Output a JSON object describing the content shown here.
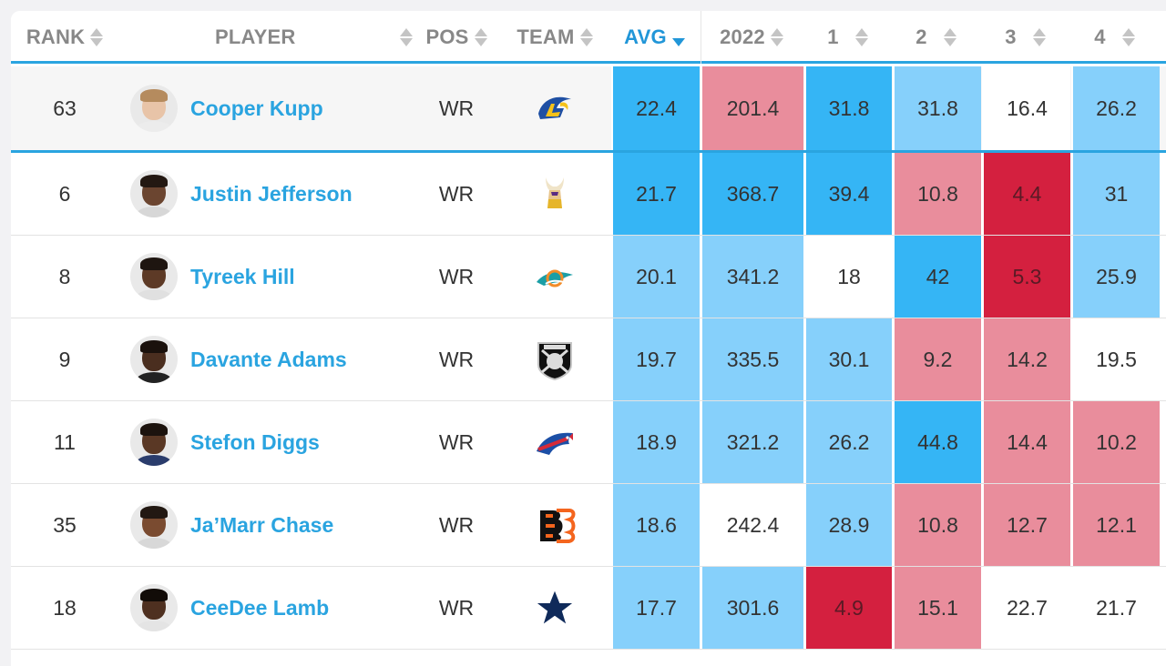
{
  "colors": {
    "dark_blue": "#35b5f5",
    "light_blue": "#86d0fb",
    "white": "#ffffff",
    "light_red": "#e98d9c",
    "dark_red": "#d4203f",
    "link_blue": "#2aa4e0",
    "header_gray": "#888888"
  },
  "table": {
    "headers": [
      {
        "label": "RANK",
        "sortable": true,
        "active": false
      },
      {
        "label": "PLAYER",
        "sortable": true,
        "active": false
      },
      {
        "label": "POS",
        "sortable": true,
        "active": false
      },
      {
        "label": "TEAM",
        "sortable": true,
        "active": false
      },
      {
        "label": "AVG",
        "sortable": true,
        "active": true,
        "sort_direction": "desc"
      },
      {
        "label": "2022",
        "sortable": true,
        "active": false
      },
      {
        "label": "1",
        "sortable": true,
        "active": false
      },
      {
        "label": "2",
        "sortable": true,
        "active": false
      },
      {
        "label": "3",
        "sortable": true,
        "active": false
      },
      {
        "label": "4",
        "sortable": true,
        "active": false
      }
    ],
    "rows": [
      {
        "rank": "63",
        "player": "Cooper Kupp",
        "pos": "WR",
        "team_logo": "rams-logo",
        "values": [
          "22.4",
          "201.4",
          "31.8",
          "31.8",
          "16.4",
          "26.2"
        ],
        "shades": [
          "dark_blue",
          "light_red",
          "dark_blue",
          "light_blue",
          "white",
          "light_blue"
        ],
        "pinned": true
      },
      {
        "rank": "6",
        "player": "Justin Jefferson",
        "pos": "WR",
        "team_logo": "vikings-logo",
        "values": [
          "21.7",
          "368.7",
          "39.4",
          "10.8",
          "4.4",
          "31"
        ],
        "shades": [
          "dark_blue",
          "dark_blue",
          "dark_blue",
          "light_red",
          "dark_red",
          "light_blue"
        ]
      },
      {
        "rank": "8",
        "player": "Tyreek Hill",
        "pos": "WR",
        "team_logo": "dolphins-logo",
        "values": [
          "20.1",
          "341.2",
          "18",
          "42",
          "5.3",
          "25.9"
        ],
        "shades": [
          "light_blue",
          "light_blue",
          "white",
          "dark_blue",
          "dark_red",
          "light_blue"
        ]
      },
      {
        "rank": "9",
        "player": "Davante Adams",
        "pos": "WR",
        "team_logo": "raiders-logo",
        "values": [
          "19.7",
          "335.5",
          "30.1",
          "9.2",
          "14.2",
          "19.5"
        ],
        "shades": [
          "light_blue",
          "light_blue",
          "light_blue",
          "light_red",
          "light_red",
          "white"
        ]
      },
      {
        "rank": "11",
        "player": "Stefon Diggs",
        "pos": "WR",
        "team_logo": "bills-logo",
        "values": [
          "18.9",
          "321.2",
          "26.2",
          "44.8",
          "14.4",
          "10.2"
        ],
        "shades": [
          "light_blue",
          "light_blue",
          "light_blue",
          "dark_blue",
          "light_red",
          "light_red"
        ]
      },
      {
        "rank": "35",
        "player": "Ja’Marr Chase",
        "pos": "WR",
        "team_logo": "bengals-logo",
        "values": [
          "18.6",
          "242.4",
          "28.9",
          "10.8",
          "12.7",
          "12.1"
        ],
        "shades": [
          "light_blue",
          "white",
          "light_blue",
          "light_red",
          "light_red",
          "light_red"
        ]
      },
      {
        "rank": "18",
        "player": "CeeDee Lamb",
        "pos": "WR",
        "team_logo": "cowboys-logo",
        "values": [
          "17.7",
          "301.6",
          "4.9",
          "15.1",
          "22.7",
          "21.7"
        ],
        "shades": [
          "light_blue",
          "light_blue",
          "dark_red",
          "light_red",
          "white",
          "white"
        ]
      }
    ]
  }
}
